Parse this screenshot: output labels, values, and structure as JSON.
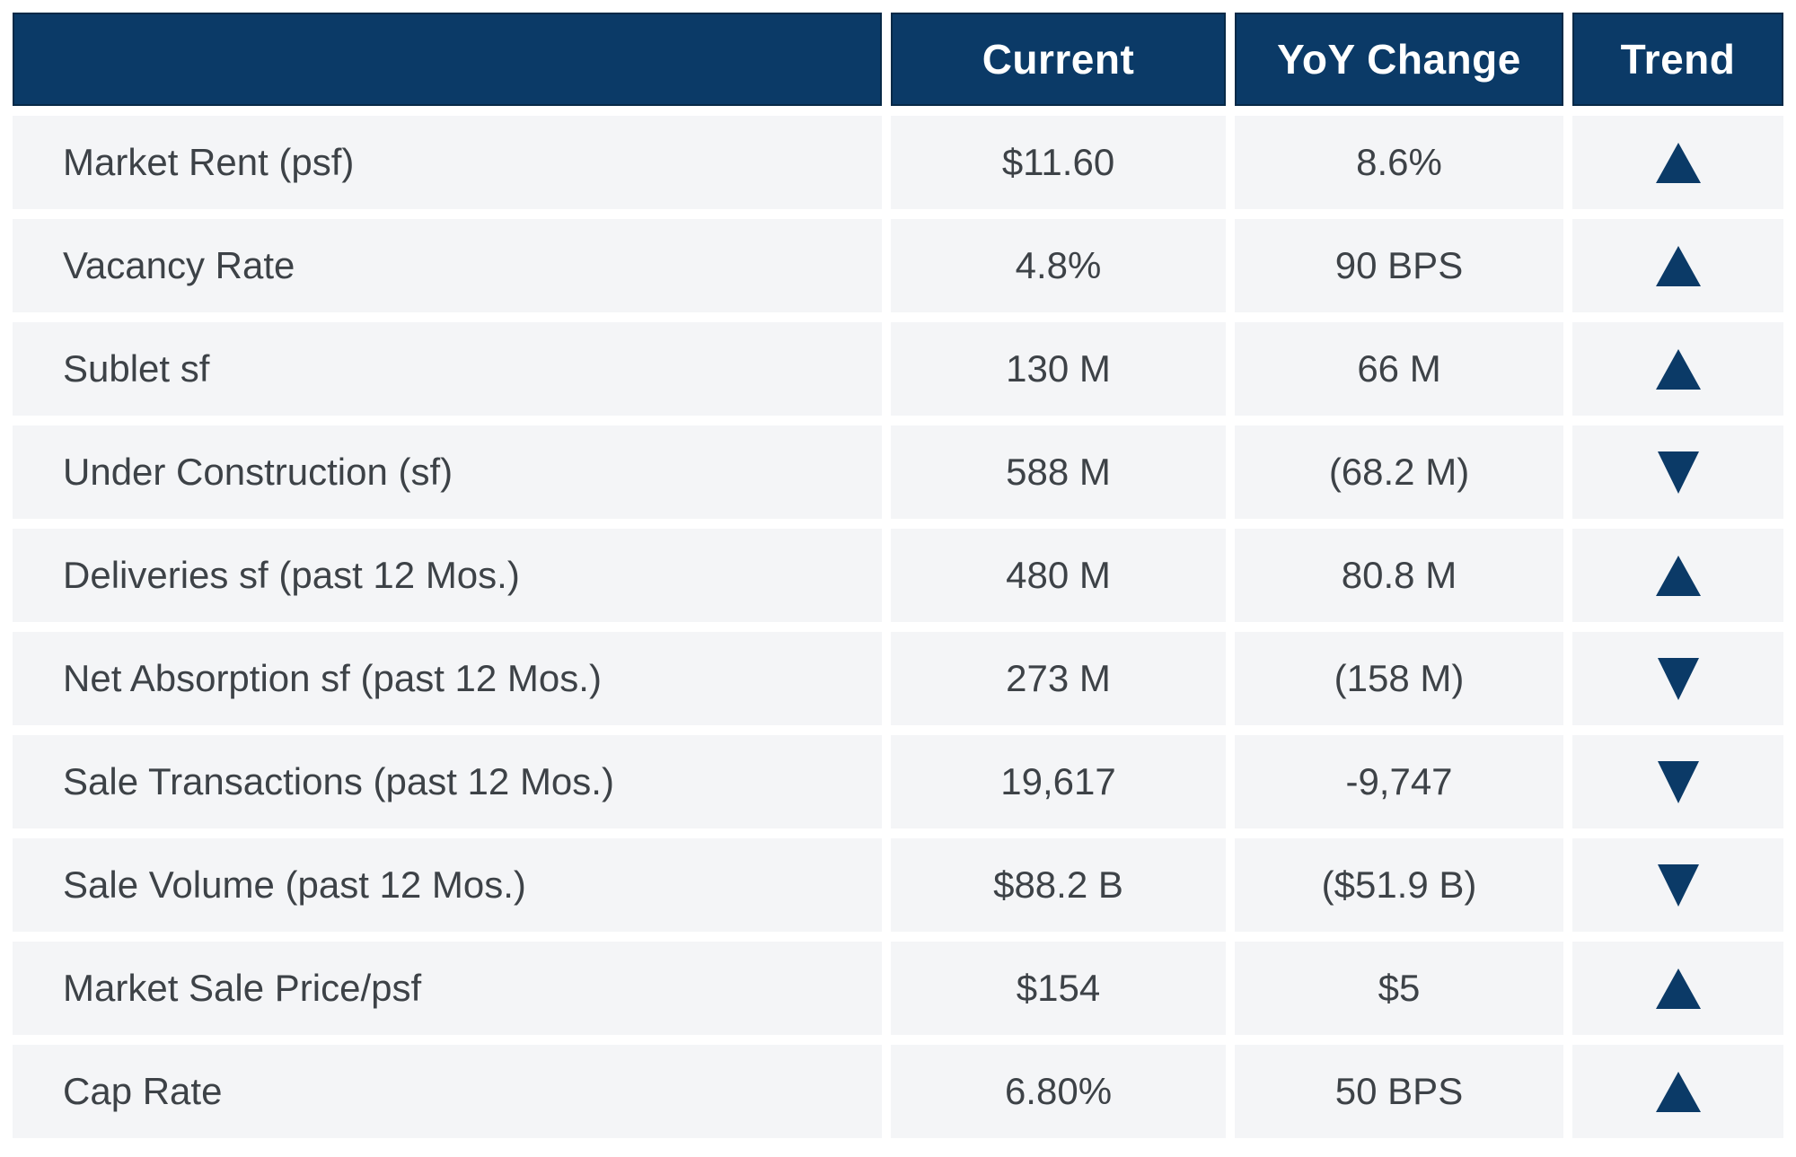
{
  "chart_data": {
    "type": "table",
    "columns": [
      "",
      "Current",
      "YoY Change",
      "Trend"
    ],
    "rows": [
      {
        "label": "Market Rent (psf)",
        "current": "$11.60",
        "yoy_change": "8.6%",
        "trend": "up"
      },
      {
        "label": "Vacancy Rate",
        "current": "4.8%",
        "yoy_change": "90 BPS",
        "trend": "up"
      },
      {
        "label": "Sublet sf",
        "current": "130 M",
        "yoy_change": "66 M",
        "trend": "up"
      },
      {
        "label": "Under Construction (sf)",
        "current": "588 M",
        "yoy_change": "(68.2 M)",
        "trend": "down"
      },
      {
        "label": "Deliveries sf (past 12 Mos.)",
        "current": "480 M",
        "yoy_change": "80.8 M",
        "trend": "up"
      },
      {
        "label": "Net Absorption sf (past 12 Mos.)",
        "current": "273 M",
        "yoy_change": "(158 M)",
        "trend": "down"
      },
      {
        "label": "Sale Transactions (past 12 Mos.)",
        "current": "19,617",
        "yoy_change": "-9,747",
        "trend": "down"
      },
      {
        "label": "Sale Volume (past 12 Mos.)",
        "current": "$88.2 B",
        "yoy_change": "($51.9 B)",
        "trend": "down"
      },
      {
        "label": "Market Sale Price/psf",
        "current": "$154",
        "yoy_change": "$5",
        "trend": "up"
      },
      {
        "label": "Cap Rate",
        "current": "6.80%",
        "yoy_change": "50 BPS",
        "trend": "up"
      }
    ]
  },
  "colors": {
    "header_bg": "#0b3a67",
    "header_border": "#072947",
    "header_text": "#ffffff",
    "row_bg": "#f4f5f7",
    "body_text": "#3d4247",
    "trend_icon": "#0b3a67",
    "gutter": "#ffffff"
  }
}
